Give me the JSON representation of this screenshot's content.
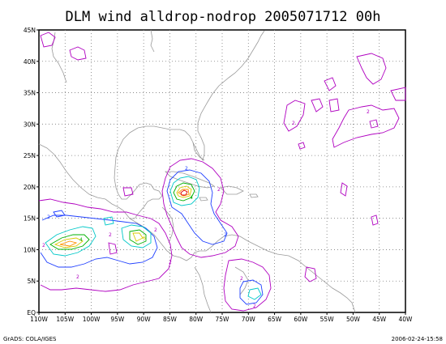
{
  "title": "DLM wind alldrop-nodrop 2005071712 00h",
  "footer_left": "GrADS: COLA/IGES",
  "footer_right": "2006-02-24-15:58",
  "map": {
    "lon_range": [
      -110,
      -40
    ],
    "lat_range": [
      0,
      45
    ],
    "x_ticks": [
      "110W",
      "105W",
      "100W",
      "95W",
      "90W",
      "85W",
      "80W",
      "75W",
      "70W",
      "65W",
      "60W",
      "55W",
      "50W",
      "45W",
      "40W"
    ],
    "y_ticks": [
      "EQ",
      "5N",
      "10N",
      "15N",
      "20N",
      "25N",
      "30N",
      "35N",
      "40N",
      "45N"
    ],
    "contour_colors": {
      "magenta": "#b000c0",
      "blue": "#2040ff",
      "cyan": "#00c8c8",
      "green": "#00b000",
      "yellow": "#d8c800",
      "orange": "#ff9000",
      "red": "#e00000"
    },
    "contour_labels": [
      "2",
      "2",
      "2",
      "2",
      "2",
      "2",
      "2",
      "2",
      "2",
      "2",
      "2",
      "2",
      "2",
      "4",
      "4",
      "6"
    ]
  }
}
